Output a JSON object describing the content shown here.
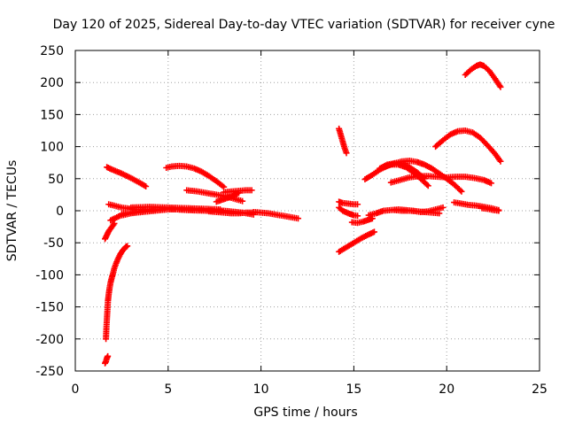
{
  "chart_data": {
    "type": "scatter",
    "title": "Day 120 of 2025, Sidereal Day-to-day VTEC variation (SDTVAR) for receiver cyne",
    "xlabel": "GPS time / hours",
    "ylabel": "SDTVAR / TECUs",
    "xlim": [
      0,
      25
    ],
    "ylim": [
      -250,
      250
    ],
    "xticks": [
      0,
      5,
      10,
      15,
      20,
      25
    ],
    "yticks": [
      -250,
      -200,
      -150,
      -100,
      -50,
      0,
      50,
      100,
      150,
      200,
      250
    ],
    "grid": true,
    "marker": "plus",
    "color": "#ff0000",
    "series": [
      {
        "x": [
          1.65,
          1.68,
          1.72,
          1.76,
          1.8,
          1.85,
          1.9,
          1.96,
          2.03,
          2.1,
          2.2,
          2.3,
          2.42,
          2.55,
          2.7,
          2.8
        ],
        "y": [
          -200,
          -180,
          -160,
          -140,
          -130,
          -120,
          -112,
          -105,
          -98,
          -90,
          -82,
          -75,
          -68,
          -62,
          -57,
          -55
        ]
      },
      {
        "x": [
          1.6,
          1.65,
          1.7,
          1.75
        ],
        "y": [
          -238,
          -235,
          -230,
          -227
        ]
      },
      {
        "x": [
          1.6,
          1.7,
          1.8,
          1.9,
          2.0,
          2.1
        ],
        "y": [
          -44,
          -38,
          -32,
          -28,
          -24,
          -20
        ]
      },
      {
        "x": [
          1.7,
          2.0,
          2.5,
          3.0,
          3.5,
          3.8
        ],
        "y": [
          68,
          64,
          58,
          51,
          43,
          38
        ]
      },
      {
        "x": [
          1.9,
          2.4,
          3.0,
          3.6,
          4.3,
          5.0,
          6.0,
          7.0,
          8.0,
          9.0,
          9.6
        ],
        "y": [
          -15,
          -8,
          -4,
          -2,
          0,
          2,
          2,
          1,
          0,
          -3,
          -6
        ]
      },
      {
        "x": [
          1.8,
          2.5,
          3.2,
          4.0,
          5.0,
          6.0,
          7.0,
          8.0
        ],
        "y": [
          10,
          5,
          2,
          2,
          3,
          1,
          0,
          -1
        ]
      },
      {
        "x": [
          2.5,
          3.0,
          3.5,
          4.0,
          4.5
        ],
        "y": [
          -5,
          -3,
          -1,
          1,
          2
        ]
      },
      {
        "x": [
          3.0,
          4.0,
          5.0,
          6.0,
          7.0,
          7.8
        ],
        "y": [
          5,
          6,
          5,
          4,
          3,
          2
        ]
      },
      {
        "x": [
          4.9,
          5.2,
          5.6,
          6.0,
          6.4,
          6.8,
          7.2,
          7.6,
          8.0
        ],
        "y": [
          67,
          69,
          70,
          69,
          66,
          61,
          54,
          46,
          37
        ]
      },
      {
        "x": [
          6.0,
          6.6,
          7.2,
          7.8,
          8.4,
          9.0
        ],
        "y": [
          32,
          30,
          27,
          24,
          20,
          15
        ]
      },
      {
        "x": [
          7.6,
          8.0,
          8.4,
          8.8
        ],
        "y": [
          14,
          18,
          22,
          28
        ]
      },
      {
        "x": [
          8.0,
          8.4,
          8.8,
          9.2,
          9.5
        ],
        "y": [
          29,
          30,
          31,
          32,
          32
        ]
      },
      {
        "x": [
          7.2,
          7.6,
          8.0,
          8.4,
          8.8,
          9.2,
          9.6
        ],
        "y": [
          -1,
          -2,
          -3,
          -4,
          -4,
          -3,
          -3
        ]
      },
      {
        "x": [
          9.6,
          10.0,
          10.4,
          10.8,
          11.2,
          11.6,
          12.0
        ],
        "y": [
          -2,
          -3,
          -4,
          -6,
          -8,
          -10,
          -12
        ]
      },
      {
        "x": [
          14.2,
          14.3,
          14.4,
          14.5,
          14.6
        ],
        "y": [
          128,
          118,
          108,
          98,
          90
        ]
      },
      {
        "x": [
          14.2,
          14.4,
          14.7,
          15.0,
          15.2
        ],
        "y": [
          14,
          12,
          11,
          10,
          10
        ]
      },
      {
        "x": [
          14.2,
          14.4,
          14.7,
          15.0,
          15.2
        ],
        "y": [
          5,
          0,
          -4,
          -7,
          -8
        ]
      },
      {
        "x": [
          14.2,
          14.6,
          15.0,
          15.4,
          15.8,
          16.1
        ],
        "y": [
          -64,
          -57,
          -50,
          -43,
          -37,
          -33
        ]
      },
      {
        "x": [
          14.9,
          15.2,
          15.5,
          15.8,
          16.0
        ],
        "y": [
          -18,
          -19,
          -17,
          -14,
          -12
        ]
      },
      {
        "x": [
          15.6,
          16.0,
          16.4,
          16.8,
          17.2,
          17.6,
          18.0,
          18.4,
          18.8,
          19.2,
          19.6,
          20.0,
          20.4,
          20.8
        ],
        "y": [
          49,
          56,
          64,
          70,
          74,
          77,
          78,
          76,
          72,
          66,
          58,
          50,
          41,
          30
        ]
      },
      {
        "x": [
          16.4,
          16.8,
          17.2,
          17.6,
          18.0,
          18.4,
          18.8
        ],
        "y": [
          66,
          72,
          74,
          73,
          68,
          60,
          50
        ]
      },
      {
        "x": [
          16.6,
          17.0,
          17.4,
          17.8,
          18.2,
          18.6,
          19.0
        ],
        "y": [
          68,
          72,
          72,
          68,
          60,
          50,
          39
        ]
      },
      {
        "x": [
          15.8,
          16.2,
          16.6,
          17.0,
          17.4,
          17.8,
          18.2,
          18.6,
          19.0,
          19.4,
          19.8
        ],
        "y": [
          -7,
          -4,
          0,
          1,
          2,
          1,
          0,
          -2,
          -1,
          2,
          5
        ]
      },
      {
        "x": [
          17.2,
          17.6,
          18.0,
          18.4,
          18.8,
          19.2,
          19.6
        ],
        "y": [
          1,
          0,
          0,
          -1,
          -2,
          -3,
          -4
        ]
      },
      {
        "x": [
          17.0,
          17.5,
          18.0,
          18.5,
          19.0,
          19.5,
          20.0,
          20.5,
          21.0,
          21.5,
          22.0,
          22.4
        ],
        "y": [
          44,
          48,
          52,
          54,
          54,
          53,
          52,
          53,
          53,
          51,
          48,
          43
        ]
      },
      {
        "x": [
          19.4,
          19.8,
          20.2,
          20.6,
          21.0,
          21.4,
          21.8,
          22.2,
          22.6,
          22.9
        ],
        "y": [
          100,
          110,
          119,
          124,
          125,
          122,
          114,
          102,
          89,
          77
        ]
      },
      {
        "x": [
          20.4,
          20.8,
          21.2,
          21.6,
          22.0,
          22.4,
          22.8
        ],
        "y": [
          13,
          11,
          9,
          8,
          6,
          4,
          1
        ]
      },
      {
        "x": [
          21.0,
          21.3,
          21.6,
          21.8,
          22.0,
          22.3,
          22.6,
          22.9
        ],
        "y": [
          212,
          220,
          226,
          228,
          226,
          218,
          206,
          193
        ]
      },
      {
        "x": [
          21.9,
          22.2,
          22.5,
          22.8
        ],
        "y": [
          4,
          3,
          1,
          0
        ]
      }
    ]
  }
}
